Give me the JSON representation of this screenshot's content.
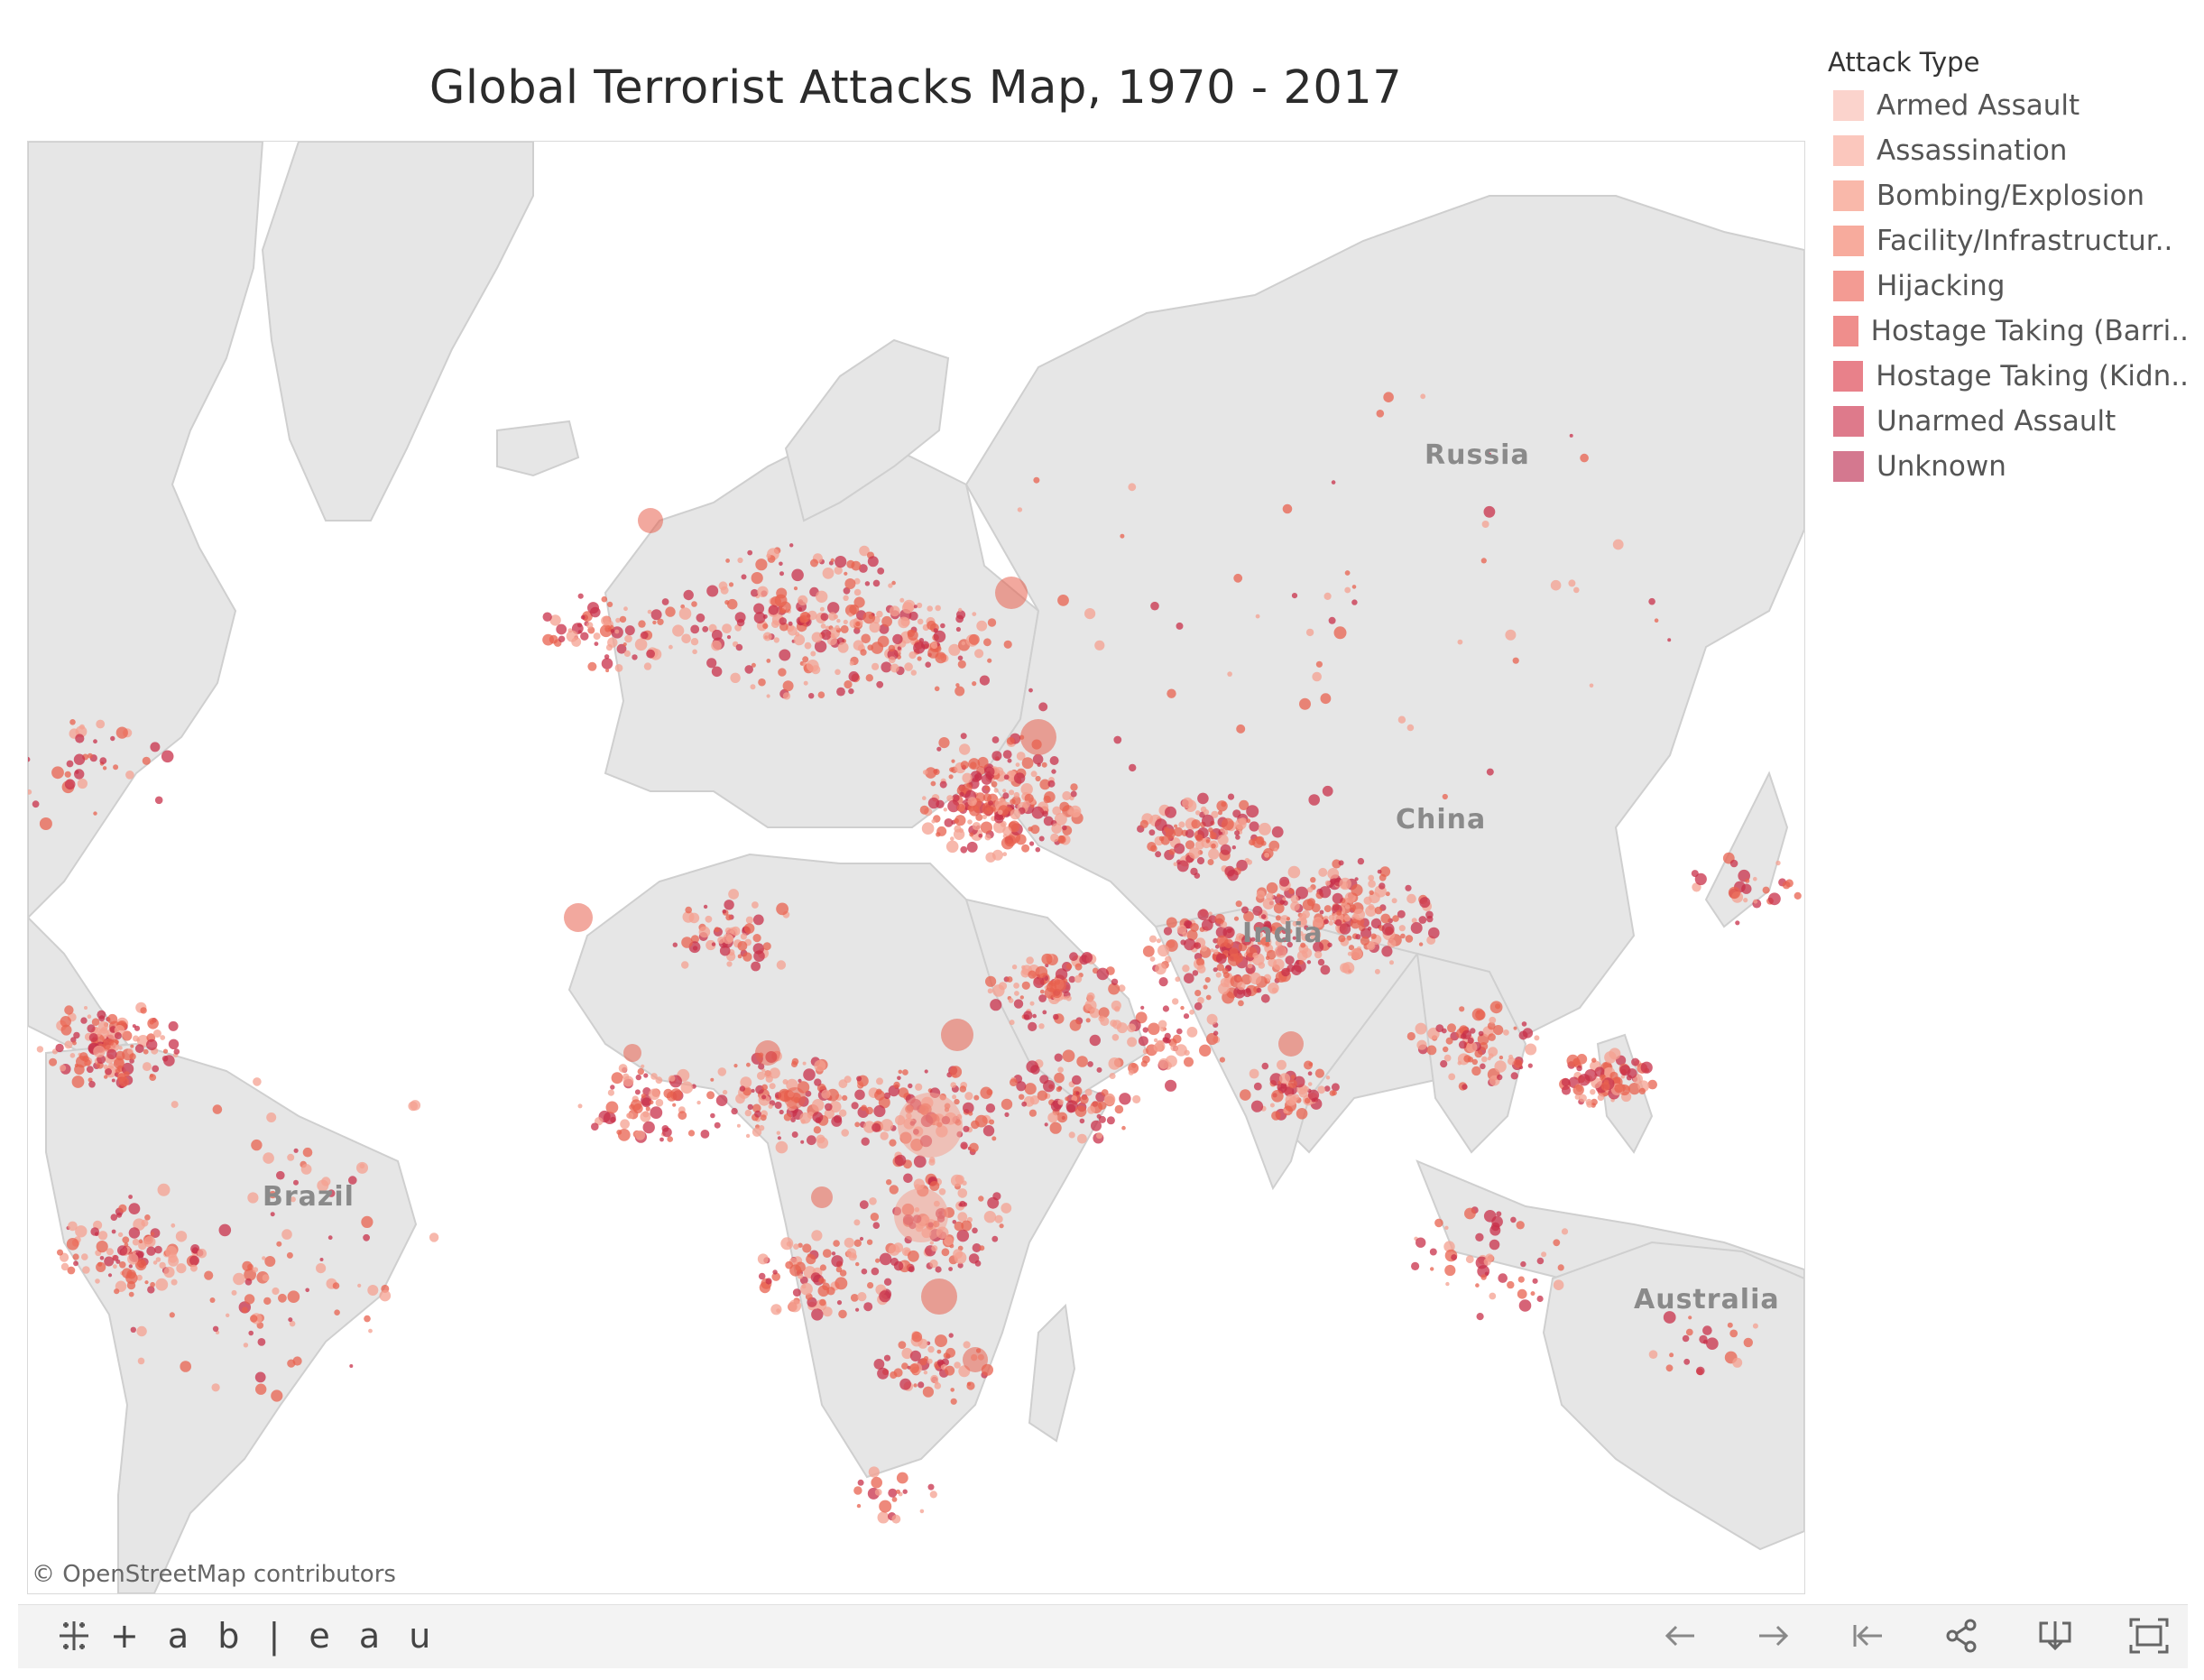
{
  "title": "Global Terrorist Attacks Map, 1970 - 2017",
  "map": {
    "country_labels": [
      {
        "text": "Russia",
        "key": "russia"
      },
      {
        "text": "China",
        "key": "china"
      },
      {
        "text": "India",
        "key": "india"
      },
      {
        "text": "Brazil",
        "key": "brazil"
      },
      {
        "text": "Australia",
        "key": "australia"
      }
    ],
    "attribution": "© OpenStreetMap contributors"
  },
  "legend": {
    "title": "Attack Type",
    "items": [
      {
        "label": "Armed Assault",
        "color": "#fbd3cc"
      },
      {
        "label": "Assassination",
        "color": "#fbc7bd"
      },
      {
        "label": "Bombing/Explosion",
        "color": "#f9b8aa"
      },
      {
        "label": "Facility/Infrastructur..",
        "color": "#f7ab9d"
      },
      {
        "label": "Hijacking",
        "color": "#f39b93"
      },
      {
        "label": "Hostage Taking (Barri..",
        "color": "#ef8e8c"
      },
      {
        "label": "Hostage Taking (Kidn..",
        "color": "#e8818a"
      },
      {
        "label": "Unarmed Assault",
        "color": "#de7a8b"
      },
      {
        "label": "Unknown",
        "color": "#d4788f"
      }
    ]
  },
  "toolbar": {
    "brand": "+ a b | e a u",
    "buttons": [
      "undo",
      "redo",
      "revert",
      "share",
      "download",
      "fullscreen"
    ]
  },
  "colors": {
    "land": "#e6e6e6",
    "point_light": "#f4a090",
    "point_mid": "#e8614f",
    "point_dark": "#c8304a"
  }
}
